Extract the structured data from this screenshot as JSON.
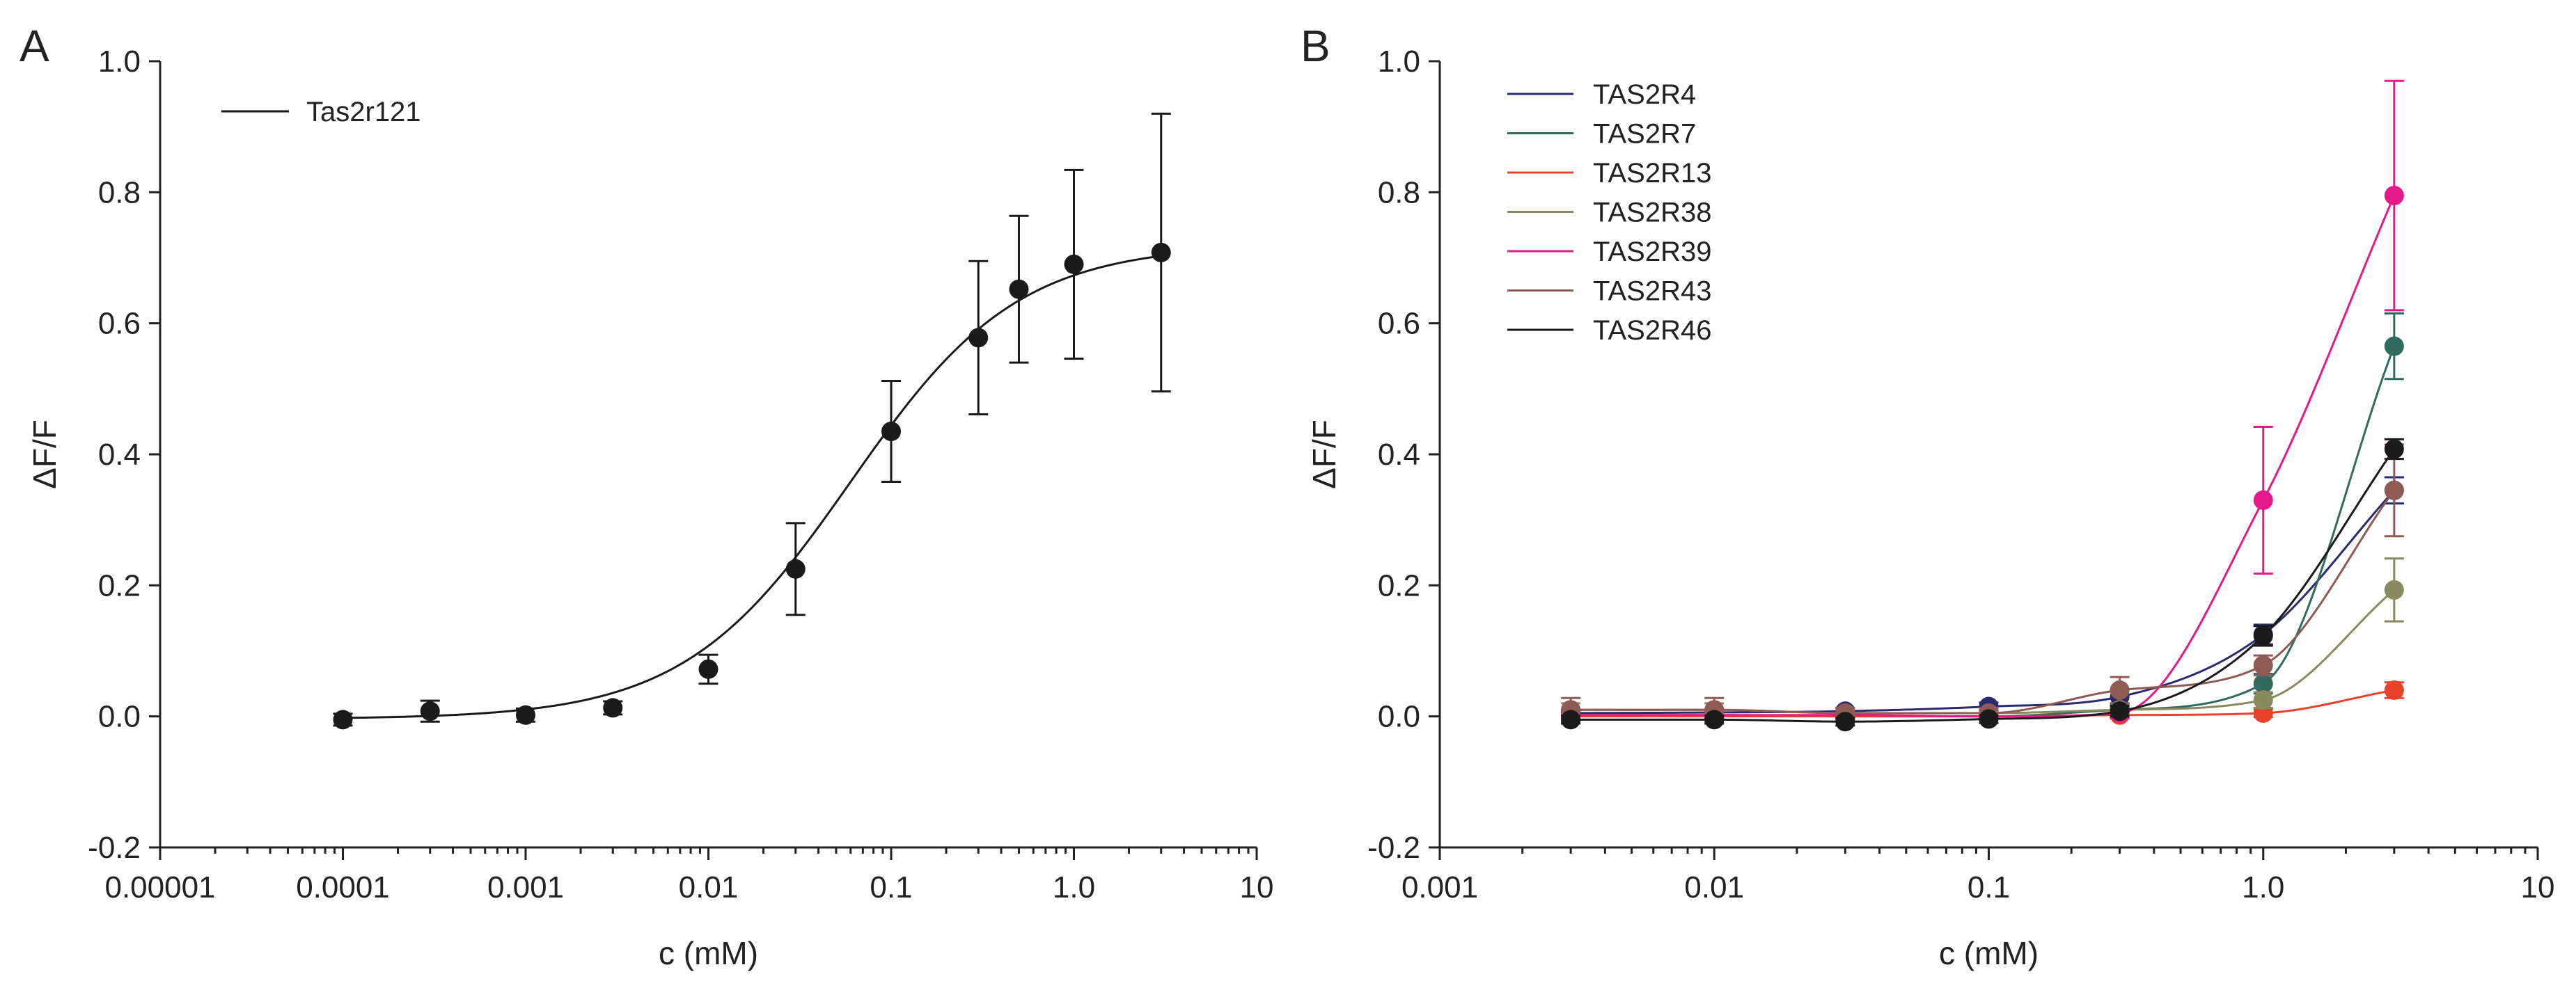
{
  "chart_data": [
    {
      "type": "scatter",
      "panel_label": "A",
      "xlabel": "c (mM)",
      "ylabel": "ΔF/F",
      "x_scale": "log",
      "xlim": [
        1e-05,
        10
      ],
      "ylim": [
        -0.2,
        1.0
      ],
      "x_ticks": [
        1e-05,
        0.0001,
        0.001,
        0.01,
        0.1,
        1,
        10
      ],
      "x_tick_labels": [
        "0.00001",
        "0.0001",
        "0.001",
        "0.01",
        "0.1",
        "1.0",
        "10"
      ],
      "y_ticks": [
        -0.2,
        0,
        0.2,
        0.4,
        0.6,
        0.8,
        1.0
      ],
      "y_tick_labels": [
        "-0.2",
        "0.0",
        "0.2",
        "0.4",
        "0.6",
        "0.8",
        "1.0"
      ],
      "grid": false,
      "legend_position": "top-left",
      "series": [
        {
          "name": "Tas2r121",
          "color": "#1a1a1a",
          "x": [
            0.0001,
            0.0003,
            0.001,
            0.003,
            0.01,
            0.03,
            0.1,
            0.3,
            0.5,
            1.0,
            3.0
          ],
          "y": [
            -0.005,
            0.008,
            0.002,
            0.013,
            0.072,
            0.225,
            0.435,
            0.578,
            0.652,
            0.69,
            0.708
          ],
          "err": [
            0.009,
            0.016,
            0.01,
            0.01,
            0.022,
            0.07,
            0.077,
            0.117,
            0.112,
            0.144,
            0.212
          ],
          "fit": {
            "bottom": -0.004,
            "top": 0.72,
            "ec50": 0.06,
            "hill": 0.95
          }
        }
      ]
    },
    {
      "type": "scatter",
      "panel_label": "B",
      "xlabel": "c (mM)",
      "ylabel": "ΔF/F",
      "x_scale": "log",
      "xlim": [
        0.001,
        10
      ],
      "ylim": [
        -0.2,
        1.0
      ],
      "x_ticks": [
        0.001,
        0.01,
        0.1,
        1,
        10
      ],
      "x_tick_labels": [
        "0.001",
        "0.01",
        "0.1",
        "1.0",
        "10"
      ],
      "y_ticks": [
        -0.2,
        0,
        0.2,
        0.4,
        0.6,
        0.8,
        1.0
      ],
      "y_tick_labels": [
        "-0.2",
        "0.0",
        "0.2",
        "0.4",
        "0.6",
        "0.8",
        "1.0"
      ],
      "grid": false,
      "legend_position": "top-left",
      "series": [
        {
          "name": "TAS2R4",
          "color": "#2a2a6e",
          "x": [
            0.003,
            0.01,
            0.03,
            0.1,
            0.3,
            1.0,
            3.0
          ],
          "y": [
            0.005,
            0.006,
            0.008,
            0.015,
            0.03,
            0.125,
            0.345
          ],
          "err": [
            0.005,
            0.005,
            0.005,
            0.006,
            0.01,
            0.015,
            0.02
          ]
        },
        {
          "name": "TAS2R7",
          "color": "#2f6b5e",
          "x": [
            0.003,
            0.01,
            0.03,
            0.1,
            0.3,
            1.0,
            3.0
          ],
          "y": [
            0.002,
            0.002,
            0.0,
            0.0,
            0.01,
            0.05,
            0.565
          ],
          "err": [
            0.005,
            0.005,
            0.005,
            0.005,
            0.008,
            0.015,
            0.05
          ]
        },
        {
          "name": "TAS2R13",
          "color": "#e8432a",
          "x": [
            0.003,
            0.01,
            0.03,
            0.1,
            0.3,
            1.0,
            3.0
          ],
          "y": [
            0.0,
            0.0,
            0.0,
            0.0,
            0.002,
            0.005,
            0.04
          ],
          "err": [
            0.004,
            0.004,
            0.004,
            0.004,
            0.004,
            0.006,
            0.012
          ]
        },
        {
          "name": "TAS2R38",
          "color": "#8a8a5e",
          "x": [
            0.003,
            0.01,
            0.03,
            0.1,
            0.3,
            1.0,
            3.0
          ],
          "y": [
            0.01,
            0.01,
            0.005,
            0.005,
            0.01,
            0.025,
            0.193
          ],
          "err": [
            0.01,
            0.01,
            0.006,
            0.006,
            0.01,
            0.012,
            0.048
          ]
        },
        {
          "name": "TAS2R39",
          "color": "#e6198a",
          "x": [
            0.003,
            0.01,
            0.03,
            0.1,
            0.3,
            1.0,
            3.0
          ],
          "y": [
            0.002,
            0.002,
            0.002,
            0.0,
            0.005,
            0.33,
            0.795
          ],
          "err": [
            0.005,
            0.005,
            0.005,
            0.005,
            0.008,
            0.112,
            0.175
          ]
        },
        {
          "name": "TAS2R43",
          "color": "#8f5a52",
          "x": [
            0.003,
            0.01,
            0.03,
            0.1,
            0.3,
            1.0,
            3.0
          ],
          "y": [
            0.01,
            0.01,
            0.005,
            0.005,
            0.04,
            0.078,
            0.345
          ],
          "err": [
            0.018,
            0.018,
            0.008,
            0.008,
            0.02,
            0.015,
            0.07
          ]
        },
        {
          "name": "TAS2R46",
          "color": "#1a1a1a",
          "x": [
            0.003,
            0.01,
            0.03,
            0.1,
            0.3,
            1.0,
            3.0
          ],
          "y": [
            -0.005,
            -0.005,
            -0.008,
            -0.004,
            0.008,
            0.123,
            0.408
          ],
          "err": [
            0.006,
            0.006,
            0.006,
            0.006,
            0.008,
            0.015,
            0.015
          ]
        }
      ]
    }
  ]
}
